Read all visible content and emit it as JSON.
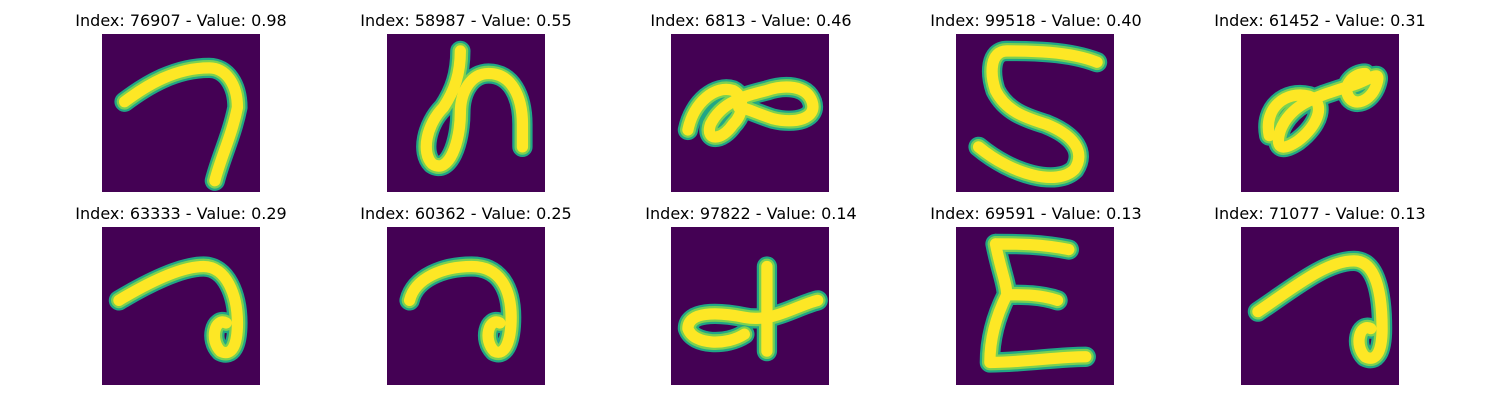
{
  "colors": {
    "background": "#440154",
    "stroke_core": "#fde725",
    "stroke_edge": "#21a685",
    "stroke_mid": "#7ad151"
  },
  "panels": [
    {
      "title": "Index: 76907 - Value: 0.98",
      "index": "76907",
      "value": 0.98,
      "glyph": "7"
    },
    {
      "title": "Index: 58987 - Value: 0.55",
      "index": "58987",
      "value": 0.55,
      "glyph": "n"
    },
    {
      "title": "Index: 6813 - Value: 0.46",
      "index": "6813",
      "value": 0.46,
      "glyph": "infinity"
    },
    {
      "title": "Index: 99518 - Value: 0.40",
      "index": "99518",
      "value": 0.4,
      "glyph": "S"
    },
    {
      "title": "Index: 61452 - Value: 0.31",
      "index": "61452",
      "value": 0.31,
      "glyph": "loop"
    },
    {
      "title": "Index: 63333 - Value: 0.29",
      "index": "63333",
      "value": 0.29,
      "glyph": "hook"
    },
    {
      "title": "Index: 60362 - Value: 0.25",
      "index": "60362",
      "value": 0.25,
      "glyph": "hook"
    },
    {
      "title": "Index: 97822 - Value: 0.14",
      "index": "97822",
      "value": 0.14,
      "glyph": "plus-loop"
    },
    {
      "title": "Index: 69591 - Value: 0.13",
      "index": "69591",
      "value": 0.13,
      "glyph": "E"
    },
    {
      "title": "Index: 71077 - Value: 0.13",
      "index": "71077",
      "value": 0.13,
      "glyph": "hook"
    }
  ]
}
